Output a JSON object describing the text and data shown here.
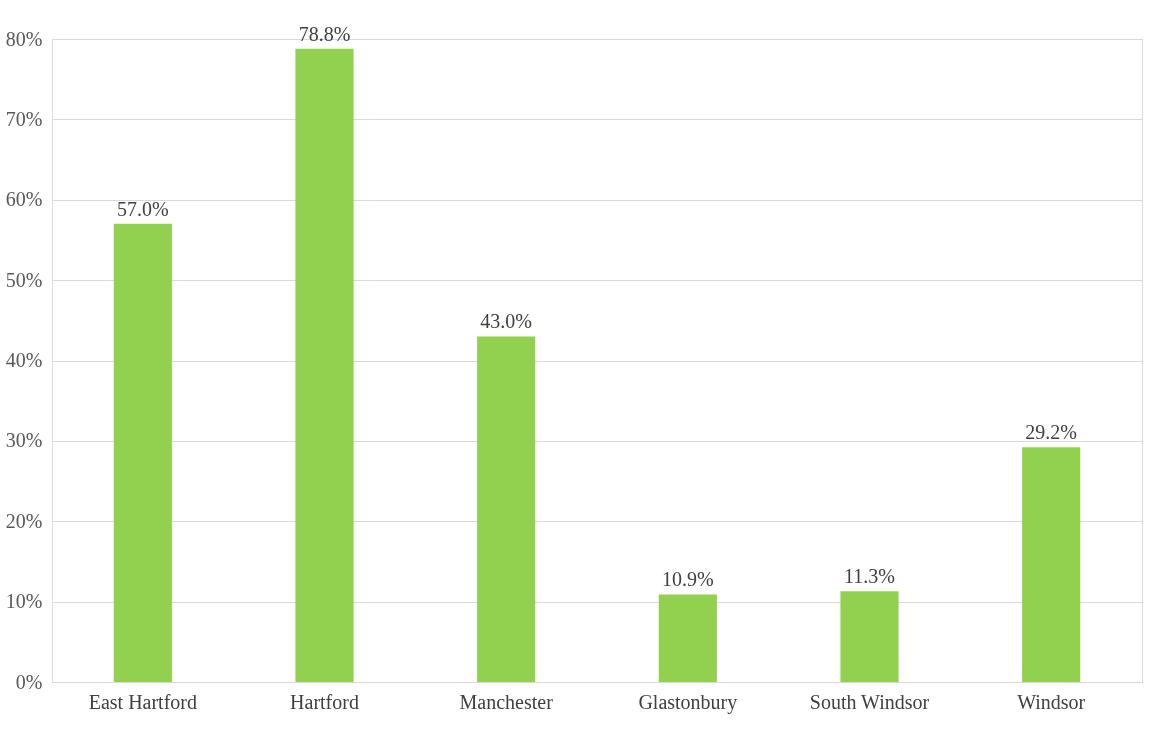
{
  "chart_data": {
    "type": "bar",
    "categories": [
      "East Hartford",
      "Hartford",
      "Manchester",
      "Glastonbury",
      "South Windsor",
      "Windsor"
    ],
    "values": [
      57.0,
      78.8,
      43.0,
      10.9,
      11.3,
      29.2
    ],
    "value_labels": [
      "57.0%",
      "78.8%",
      "43.0%",
      "10.9%",
      "11.3%",
      "29.2%"
    ],
    "color": "#92d050",
    "ylim": [
      0,
      80
    ],
    "yticks": [
      {
        "value": 0,
        "label": "0%"
      },
      {
        "value": 10,
        "label": "10%"
      },
      {
        "value": 20,
        "label": "20%"
      },
      {
        "value": 30,
        "label": "30%"
      },
      {
        "value": 40,
        "label": "40%"
      },
      {
        "value": 50,
        "label": "50%"
      },
      {
        "value": 60,
        "label": "60%"
      },
      {
        "value": 70,
        "label": "70%"
      },
      {
        "value": 80,
        "label": "80%"
      }
    ],
    "grid": "y"
  }
}
